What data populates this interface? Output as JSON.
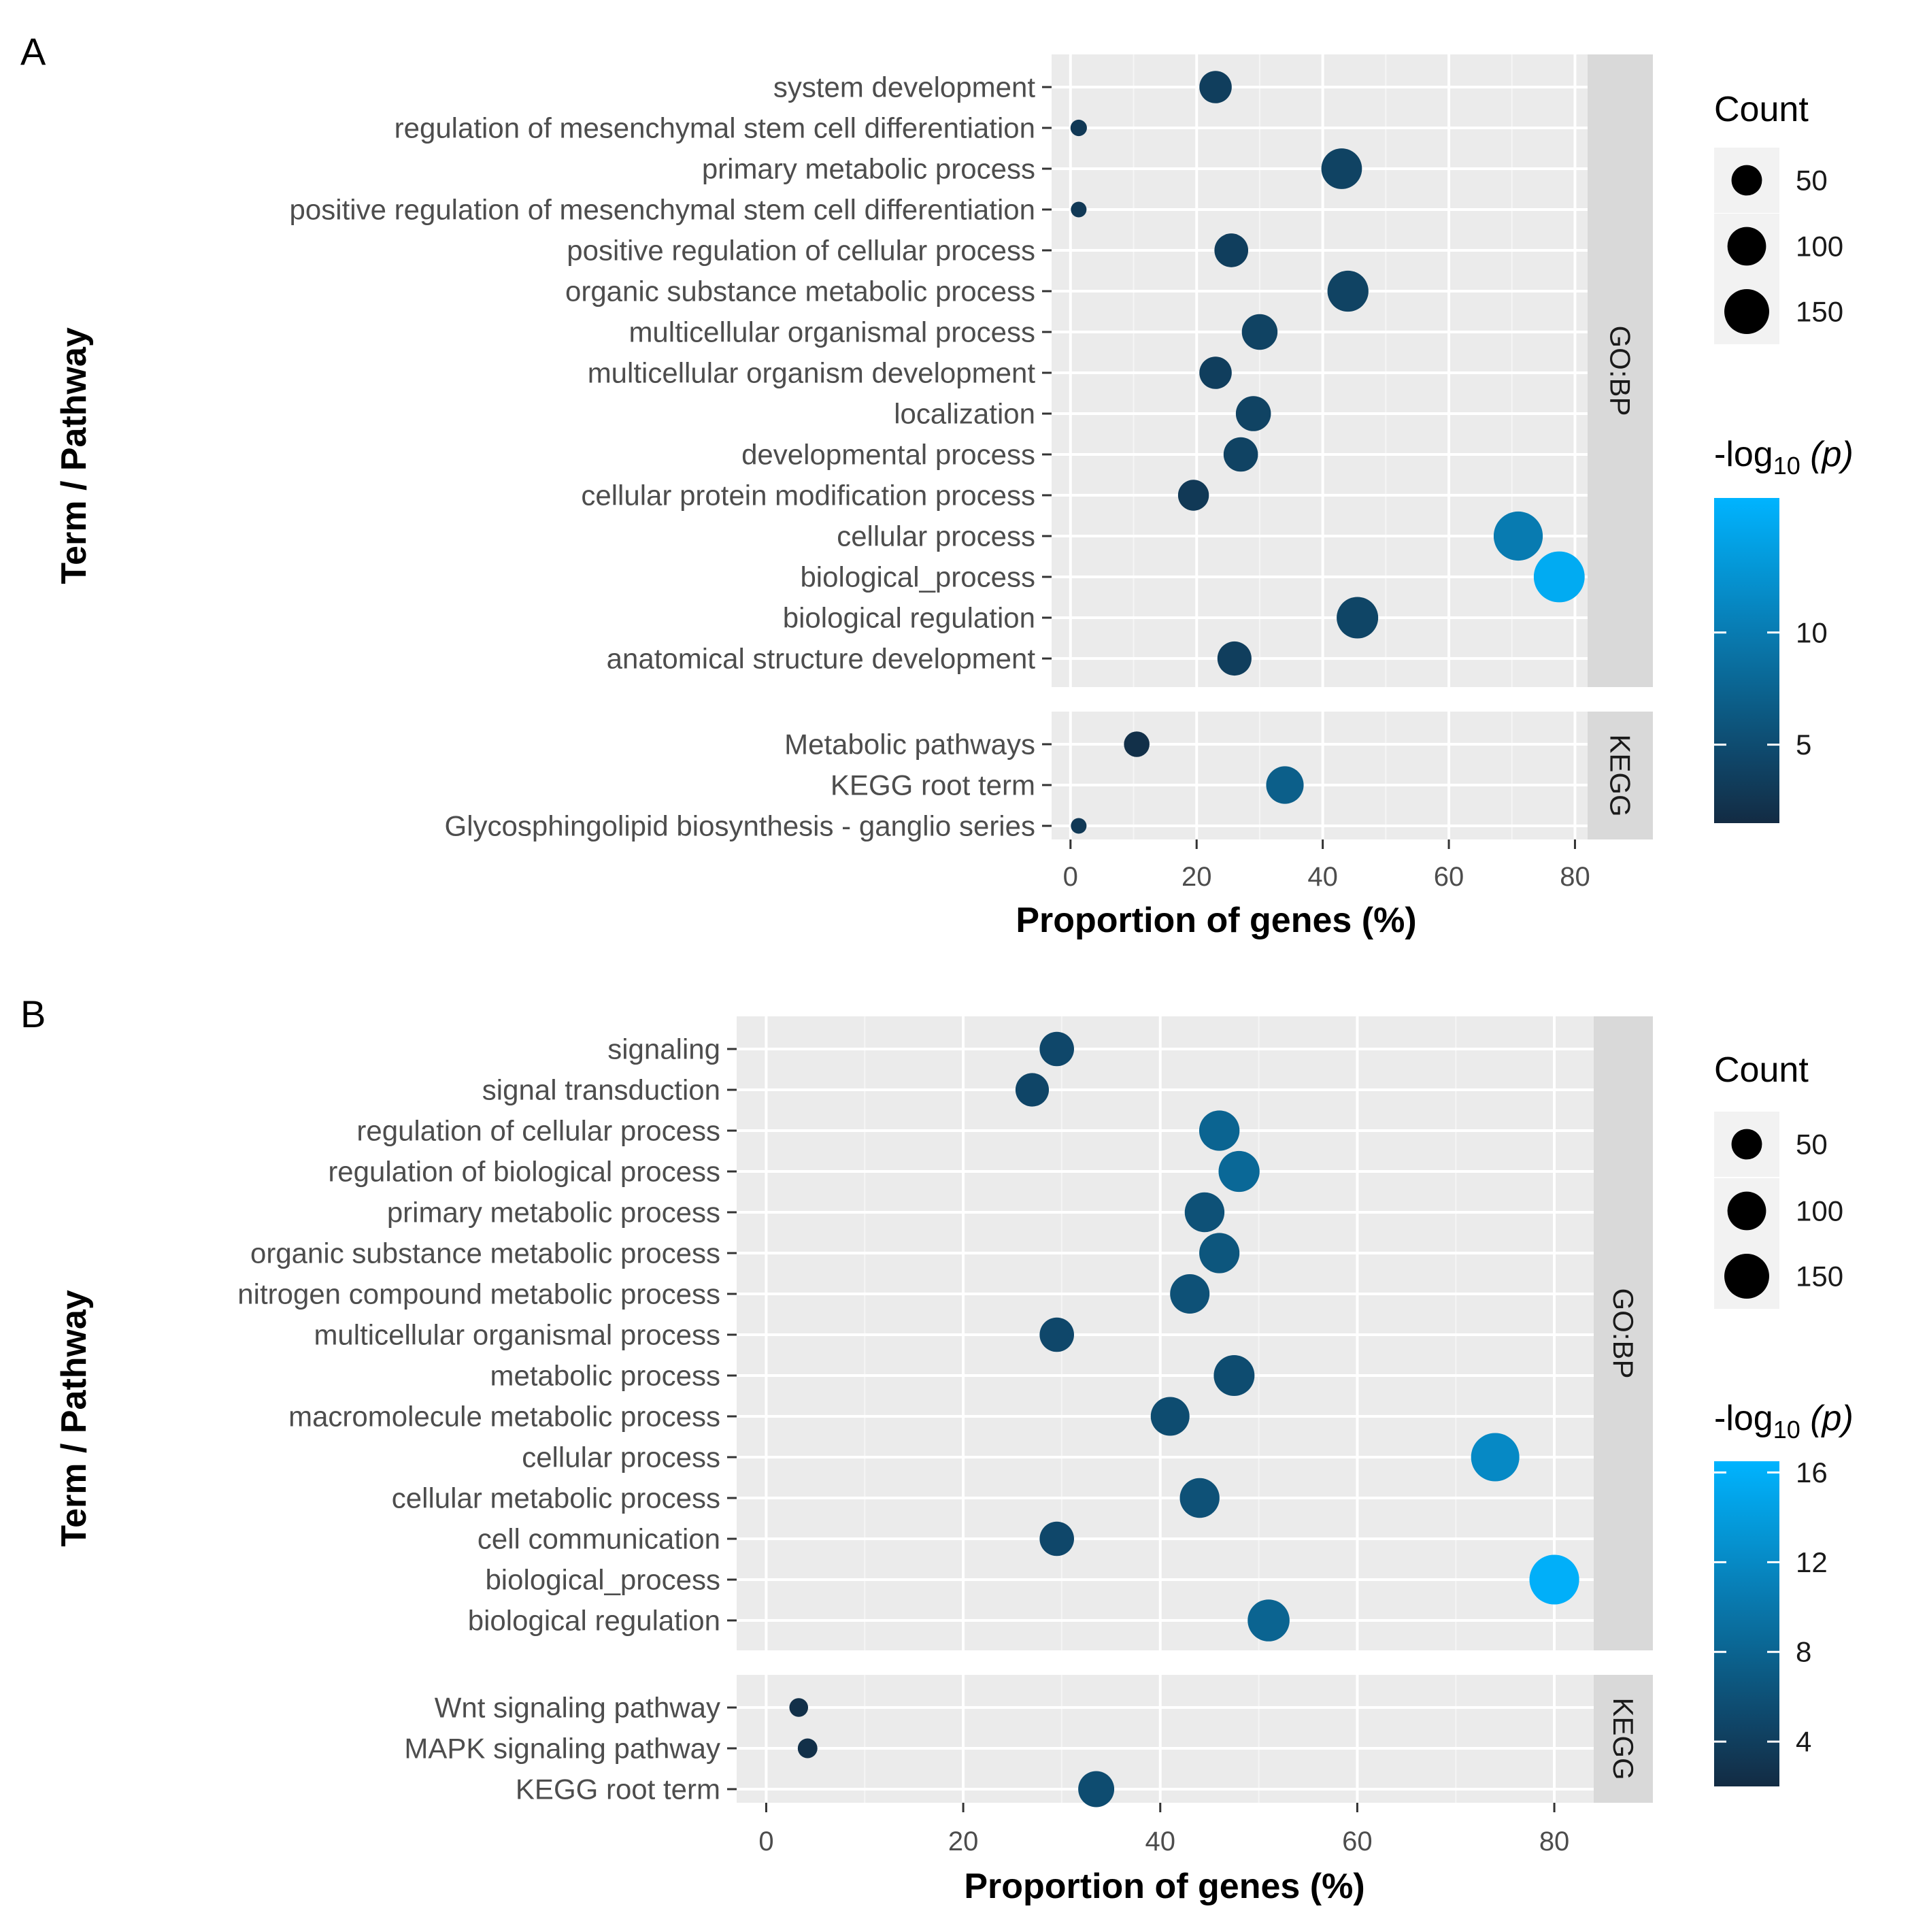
{
  "chart_data": [
    {
      "panel_label": "A",
      "type": "scatter",
      "xlabel": "Proportion of genes (%)",
      "ylabel": "Term / Pathway",
      "xlim": [
        -3,
        82
      ],
      "xticks": [
        "0",
        "20",
        "40",
        "60",
        "80"
      ],
      "facets": [
        {
          "name": "GO:BP",
          "terms": [
            {
              "term": "system development",
              "x": 23,
              "count": 60,
              "neglog10p": 3.5
            },
            {
              "term": "regulation of mesenchymal stem cell differentiation",
              "x": 1.3,
              "count": 4,
              "neglog10p": 3.0
            },
            {
              "term": "primary metabolic process",
              "x": 43,
              "count": 115,
              "neglog10p": 4.0
            },
            {
              "term": "positive regulation of mesenchymal stem cell differentiation",
              "x": 1.3,
              "count": 3,
              "neglog10p": 3.0
            },
            {
              "term": "positive regulation of cellular process",
              "x": 25.5,
              "count": 68,
              "neglog10p": 3.5
            },
            {
              "term": "organic substance metabolic process",
              "x": 44,
              "count": 118,
              "neglog10p": 4.0
            },
            {
              "term": "multicellular organismal process",
              "x": 30,
              "count": 80,
              "neglog10p": 4.0
            },
            {
              "term": "multicellular organism development",
              "x": 23,
              "count": 60,
              "neglog10p": 3.5
            },
            {
              "term": "localization",
              "x": 29,
              "count": 76,
              "neglog10p": 4.0
            },
            {
              "term": "developmental process",
              "x": 27,
              "count": 72,
              "neglog10p": 4.0
            },
            {
              "term": "cellular protein modification process",
              "x": 19.5,
              "count": 52,
              "neglog10p": 3.0
            },
            {
              "term": "cellular process",
              "x": 71,
              "count": 190,
              "neglog10p": 10.0
            },
            {
              "term": "biological_process",
              "x": 77.5,
              "count": 208,
              "neglog10p": 15.0
            },
            {
              "term": "biological regulation",
              "x": 45.5,
              "count": 122,
              "neglog10p": 4.2
            },
            {
              "term": "anatomical structure development",
              "x": 26,
              "count": 70,
              "neglog10p": 3.5
            }
          ]
        },
        {
          "name": "KEGG",
          "terms": [
            {
              "term": "Metabolic pathways",
              "x": 10.5,
              "count": 28,
              "neglog10p": 2.0
            },
            {
              "term": "KEGG root term",
              "x": 34,
              "count": 92,
              "neglog10p": 7.0
            },
            {
              "term": "Glycosphingolipid biosynthesis - ganglio series",
              "x": 1.3,
              "count": 3,
              "neglog10p": 3.0
            }
          ]
        }
      ],
      "size_legend": {
        "title": "Count",
        "breaks": [
          "50",
          "100",
          "150"
        ]
      },
      "color_legend": {
        "title": "-log",
        "title_sub": "10",
        "title_suffix": " (p)",
        "range": [
          1.5,
          16
        ],
        "breaks": [
          "10",
          "5"
        ],
        "break_values": [
          10,
          5
        ],
        "low_color": "#132B43",
        "high_color": "#00B4FF"
      }
    },
    {
      "panel_label": "B",
      "type": "scatter",
      "xlabel": "Proportion of genes (%)",
      "ylabel": "Term / Pathway",
      "xlim": [
        -3,
        84
      ],
      "xticks": [
        "0",
        "20",
        "40",
        "60",
        "80"
      ],
      "facets": [
        {
          "name": "GO:BP",
          "terms": [
            {
              "term": "signaling",
              "x": 29.5,
              "count": 72,
              "neglog10p": 5.0
            },
            {
              "term": "signal transduction",
              "x": 27,
              "count": 66,
              "neglog10p": 4.8
            },
            {
              "term": "regulation of cellular process",
              "x": 46,
              "count": 113,
              "neglog10p": 8.0
            },
            {
              "term": "regulation of biological process",
              "x": 48,
              "count": 118,
              "neglog10p": 8.5
            },
            {
              "term": "primary metabolic process",
              "x": 44.5,
              "count": 108,
              "neglog10p": 6.0
            },
            {
              "term": "organic substance metabolic process",
              "x": 46,
              "count": 112,
              "neglog10p": 6.5
            },
            {
              "term": "nitrogen compound metabolic process",
              "x": 43,
              "count": 106,
              "neglog10p": 6.0
            },
            {
              "term": "multicellular organismal process",
              "x": 29.5,
              "count": 72,
              "neglog10p": 5.0
            },
            {
              "term": "metabolic process",
              "x": 47.5,
              "count": 116,
              "neglog10p": 5.5
            },
            {
              "term": "macromolecule metabolic process",
              "x": 41,
              "count": 101,
              "neglog10p": 5.5
            },
            {
              "term": "cellular process",
              "x": 74,
              "count": 182,
              "neglog10p": 12.0
            },
            {
              "term": "cellular metabolic process",
              "x": 44,
              "count": 108,
              "neglog10p": 6.0
            },
            {
              "term": "cell communication",
              "x": 29.5,
              "count": 72,
              "neglog10p": 5.0
            },
            {
              "term": "biological_process",
              "x": 80,
              "count": 196,
              "neglog10p": 16.0
            },
            {
              "term": "biological regulation",
              "x": 51,
              "count": 125,
              "neglog10p": 8.0
            }
          ]
        },
        {
          "name": "KEGG",
          "terms": [
            {
              "term": "Wnt signaling pathway",
              "x": 3.3,
              "count": 8,
              "neglog10p": 2.5
            },
            {
              "term": "MAPK signaling pathway",
              "x": 4.2,
              "count": 10,
              "neglog10p": 2.5
            },
            {
              "term": "KEGG root term",
              "x": 33.5,
              "count": 82,
              "neglog10p": 5.5
            }
          ]
        }
      ],
      "size_legend": {
        "title": "Count",
        "breaks": [
          "50",
          "100",
          "150"
        ]
      },
      "color_legend": {
        "title": "-log",
        "title_sub": "10",
        "title_suffix": " (p)",
        "range": [
          2,
          16.5
        ],
        "breaks": [
          "16",
          "12",
          "8",
          "4"
        ],
        "break_values": [
          16,
          12,
          8,
          4
        ],
        "low_color": "#132B43",
        "high_color": "#00B4FF"
      }
    }
  ]
}
